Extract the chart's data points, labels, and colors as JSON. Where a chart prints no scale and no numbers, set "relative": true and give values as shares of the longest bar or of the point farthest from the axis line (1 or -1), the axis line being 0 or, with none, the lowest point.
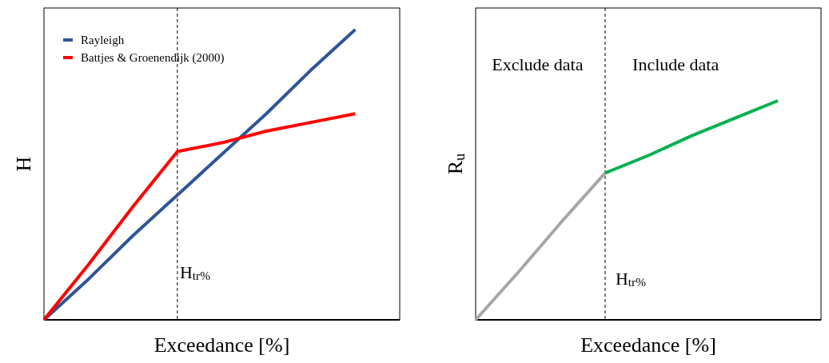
{
  "chart_data": [
    {
      "type": "line",
      "relative": true,
      "xlabel": "Exceedance [%]",
      "ylabel": "H",
      "categories": [
        null,
        null,
        null,
        null,
        null,
        null,
        null,
        null,
        null
      ],
      "legend": "top left",
      "line_style": "solid",
      "marker": "none",
      "series": [
        {
          "name": "Rayleigh",
          "color": "#2f5597",
          "values": [
            0,
            0.14,
            0.29,
            0.43,
            0.57,
            0.71,
            0.86,
            1,
            null
          ]
        },
        {
          "name": "Battjes & Groenendijk (2000)",
          "color": "#ff0000",
          "values": [
            0,
            0.19,
            0.39,
            0.58,
            0.61,
            0.65,
            0.68,
            0.71,
            null
          ]
        }
      ],
      "annotations": [
        "H$_{tr%}$"
      ]
    },
    {
      "type": "line",
      "relative": true,
      "xlabel": "Exceedance [%]",
      "ylabel": "R$_{u}$",
      "categories": [
        null,
        null,
        null,
        null,
        null,
        null,
        null,
        null,
        null
      ],
      "line_style": "solid",
      "marker": "none",
      "series": [
        {
          "color": "#a6a6a6",
          "values": [
            0,
            0.22,
            0.45,
            0.67,
            null,
            null,
            null,
            null,
            null
          ]
        },
        {
          "color": "#00b050",
          "values": [
            null,
            null,
            null,
            0.67,
            0.75,
            0.84,
            0.92,
            1,
            null
          ]
        }
      ],
      "annotations": [
        "Exclude data",
        "Include data",
        "H$_{tr%}$"
      ]
    }
  ]
}
